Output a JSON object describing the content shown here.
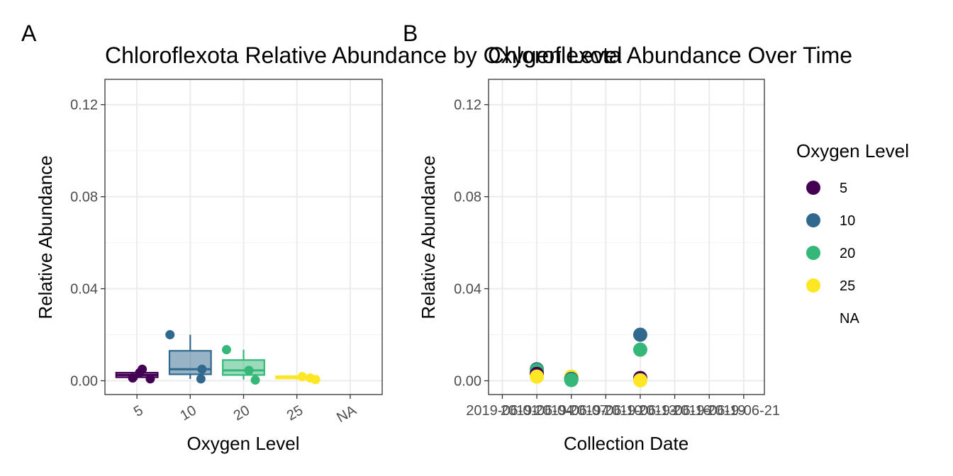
{
  "chart_data": [
    {
      "type": "box",
      "tag": "A",
      "title": "Chloroflexota Relative Abundance by Oxygen Level",
      "xlabel": "Oxygen Level",
      "ylabel": "Relative Abundance",
      "categories": [
        "5",
        "10",
        "20",
        "25",
        "NA"
      ],
      "ylim": [
        -0.006,
        0.131
      ],
      "yticks": [
        0.0,
        0.04,
        0.08,
        0.12
      ],
      "ytick_labels": [
        "0.00",
        "0.04",
        "0.08",
        "0.12"
      ],
      "grid": true,
      "boxes": [
        {
          "category": "5",
          "q1": 0.0015,
          "median": 0.0025,
          "q3": 0.0035,
          "whisker_low": 0.0005,
          "whisker_high": 0.004,
          "color": "#440154"
        },
        {
          "category": "10",
          "q1": 0.0028,
          "median": 0.005,
          "q3": 0.013,
          "whisker_low": 0.0008,
          "whisker_high": 0.02,
          "color": "#31688e"
        },
        {
          "category": "20",
          "q1": 0.0025,
          "median": 0.0045,
          "q3": 0.009,
          "whisker_low": 0.0005,
          "whisker_high": 0.0135,
          "color": "#35b779"
        },
        {
          "category": "25",
          "q1": 0.001,
          "median": 0.0015,
          "q3": 0.002,
          "whisker_low": 0.0005,
          "whisker_high": 0.002,
          "color": "#fde725"
        }
      ],
      "points": [
        {
          "category": "5",
          "jitter": 0.1,
          "y": 0.005,
          "color": "#440154"
        },
        {
          "category": "5",
          "jitter": -0.08,
          "y": 0.0012,
          "color": "#440154"
        },
        {
          "category": "5",
          "jitter": 0.25,
          "y": 0.0008,
          "color": "#440154"
        },
        {
          "category": "5",
          "jitter": 0.05,
          "y": 0.0035,
          "color": "#440154"
        },
        {
          "category": "10",
          "jitter": -0.38,
          "y": 0.02,
          "color": "#31688e"
        },
        {
          "category": "10",
          "jitter": 0.22,
          "y": 0.005,
          "color": "#31688e"
        },
        {
          "category": "10",
          "jitter": 0.2,
          "y": 0.0008,
          "color": "#31688e"
        },
        {
          "category": "20",
          "jitter": -0.32,
          "y": 0.0135,
          "color": "#35b779"
        },
        {
          "category": "20",
          "jitter": 0.1,
          "y": 0.0045,
          "color": "#35b779"
        },
        {
          "category": "20",
          "jitter": 0.22,
          "y": 0.0003,
          "color": "#35b779"
        },
        {
          "category": "25",
          "jitter": 0.1,
          "y": 0.0018,
          "color": "#fde725"
        },
        {
          "category": "25",
          "jitter": 0.35,
          "y": 0.0005,
          "color": "#fde725"
        },
        {
          "category": "25",
          "jitter": 0.25,
          "y": 0.0012,
          "color": "#fde725"
        }
      ]
    },
    {
      "type": "scatter",
      "tag": "B",
      "title": "Chloroflexota Abundance Over Time",
      "xlabel": "Collection Date",
      "ylabel": "Relative Abundance",
      "x_tick_labels": [
        "2019-06-01",
        "2019-06-04",
        "2019-06-07",
        "2019-06-10",
        "2019-06-13",
        "2019-06-16",
        "2019-06-19",
        "2019-06-21"
      ],
      "x_tick_positions": [
        0,
        1,
        2,
        3,
        4,
        5,
        6,
        7
      ],
      "xlim": [
        -0.4,
        7.6
      ],
      "ylim": [
        -0.006,
        0.131
      ],
      "yticks": [
        0.0,
        0.04,
        0.08,
        0.12
      ],
      "ytick_labels": [
        "0.00",
        "0.04",
        "0.08",
        "0.12"
      ],
      "grid": true,
      "points": [
        {
          "x": 1,
          "y": 0.005,
          "color": "#31688e"
        },
        {
          "x": 1,
          "y": 0.0045,
          "color": "#35b779"
        },
        {
          "x": 1,
          "y": 0.003,
          "color": "#440154"
        },
        {
          "x": 1,
          "y": 0.0018,
          "color": "#fde725"
        },
        {
          "x": 2,
          "y": 0.0018,
          "color": "#fde725"
        },
        {
          "x": 2,
          "y": 0.0008,
          "color": "#440154"
        },
        {
          "x": 2,
          "y": 0.0008,
          "color": "#31688e"
        },
        {
          "x": 2,
          "y": 0.0003,
          "color": "#35b779"
        },
        {
          "x": 4,
          "y": 0.02,
          "color": "#31688e"
        },
        {
          "x": 4,
          "y": 0.0135,
          "color": "#35b779"
        },
        {
          "x": 4,
          "y": 0.0012,
          "color": "#440154"
        },
        {
          "x": 4,
          "y": 0.0002,
          "color": "#fde725"
        }
      ],
      "legend": {
        "title": "Oxygen Level",
        "position": "right",
        "items": [
          {
            "label": "5",
            "color": "#440154"
          },
          {
            "label": "10",
            "color": "#31688e"
          },
          {
            "label": "20",
            "color": "#35b779"
          },
          {
            "label": "25",
            "color": "#fde725"
          },
          {
            "label": "NA",
            "color": ""
          }
        ]
      }
    }
  ]
}
